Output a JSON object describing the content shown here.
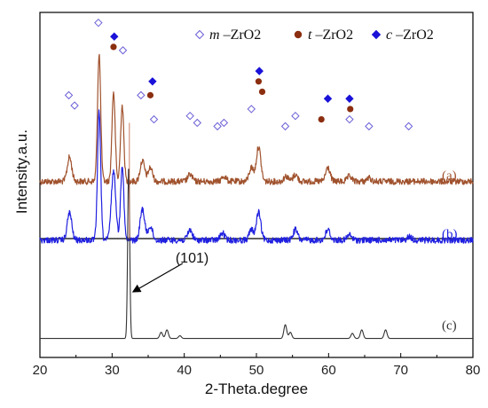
{
  "chart_data": {
    "type": "line",
    "title": "",
    "xlabel": "2-Theta.degree",
    "ylabel": "Intensity.a.u.",
    "xlim": [
      20,
      80
    ],
    "xticks": [
      20,
      30,
      40,
      50,
      60,
      70,
      80
    ],
    "yticks": false,
    "grid": false,
    "legend": {
      "placement": "top-right",
      "entries": [
        {
          "marker": "open-diamond",
          "symbol": "m",
          "label": "–ZrO2",
          "color": "#6a5fd6"
        },
        {
          "marker": "circle",
          "symbol": "t",
          "label": "–ZrO2",
          "color": "#8b2e10"
        },
        {
          "marker": "filled-diamond",
          "symbol": "c",
          "label": "–ZrO2",
          "color": "#1a12d8"
        }
      ]
    },
    "series": [
      {
        "name": "(a)",
        "color": "#a0522d",
        "baseline": 0.49,
        "peaks": [
          [
            24.1,
            0.07
          ],
          [
            28.2,
            0.37
          ],
          [
            30.2,
            0.26
          ],
          [
            31.4,
            0.22
          ],
          [
            34.2,
            0.06
          ],
          [
            35.3,
            0.04
          ],
          [
            40.8,
            0.02
          ],
          [
            45.5,
            0.015
          ],
          [
            49.3,
            0.04
          ],
          [
            50.3,
            0.1
          ],
          [
            54.1,
            0.015
          ],
          [
            55.4,
            0.02
          ],
          [
            59.9,
            0.04
          ],
          [
            62.9,
            0.015
          ],
          [
            65.6,
            0.01
          ]
        ]
      },
      {
        "name": "(b)",
        "color": "#2020e0",
        "baseline": 0.66,
        "peaks": [
          [
            24.1,
            0.08
          ],
          [
            28.2,
            0.37
          ],
          [
            30.2,
            0.2
          ],
          [
            31.4,
            0.22
          ],
          [
            34.2,
            0.09
          ],
          [
            35.3,
            0.04
          ],
          [
            40.8,
            0.03
          ],
          [
            45.3,
            0.02
          ],
          [
            49.3,
            0.03
          ],
          [
            50.3,
            0.08
          ],
          [
            55.4,
            0.03
          ],
          [
            59.9,
            0.03
          ],
          [
            62.9,
            0.015
          ],
          [
            71.2,
            0.01
          ]
        ]
      },
      {
        "name": "(c)",
        "color": "#333333",
        "baseline": 0.945,
        "peaks": [
          [
            32.3,
            0.5
          ],
          [
            36.8,
            0.018
          ],
          [
            37.6,
            0.025
          ],
          [
            39.4,
            0.008
          ],
          [
            54.0,
            0.04
          ],
          [
            54.7,
            0.018
          ],
          [
            63.3,
            0.015
          ],
          [
            64.6,
            0.025
          ],
          [
            67.9,
            0.025
          ]
        ]
      }
    ],
    "markers": {
      "m": [
        [
          24.0,
          0.24
        ],
        [
          24.8,
          0.27
        ],
        [
          28.1,
          0.03
        ],
        [
          31.5,
          0.11
        ],
        [
          34.0,
          0.24
        ],
        [
          35.8,
          0.31
        ],
        [
          40.8,
          0.3
        ],
        [
          41.8,
          0.32
        ],
        [
          44.6,
          0.33
        ],
        [
          45.5,
          0.32
        ],
        [
          49.3,
          0.28
        ],
        [
          54.0,
          0.33
        ],
        [
          55.4,
          0.3
        ],
        [
          62.9,
          0.31
        ],
        [
          65.6,
          0.33
        ],
        [
          71.1,
          0.33
        ]
      ],
      "t": [
        [
          30.2,
          0.1
        ],
        [
          35.3,
          0.24
        ],
        [
          50.3,
          0.2
        ],
        [
          50.8,
          0.23
        ],
        [
          59.0,
          0.31
        ],
        [
          63.0,
          0.28
        ]
      ],
      "c": [
        [
          30.3,
          0.07
        ],
        [
          35.6,
          0.2
        ],
        [
          50.4,
          0.17
        ],
        [
          59.9,
          0.25
        ],
        [
          62.9,
          0.25
        ]
      ]
    },
    "annotations": [
      {
        "text": "(101)",
        "x": 32.4,
        "target_y": 0.81
      }
    ]
  }
}
